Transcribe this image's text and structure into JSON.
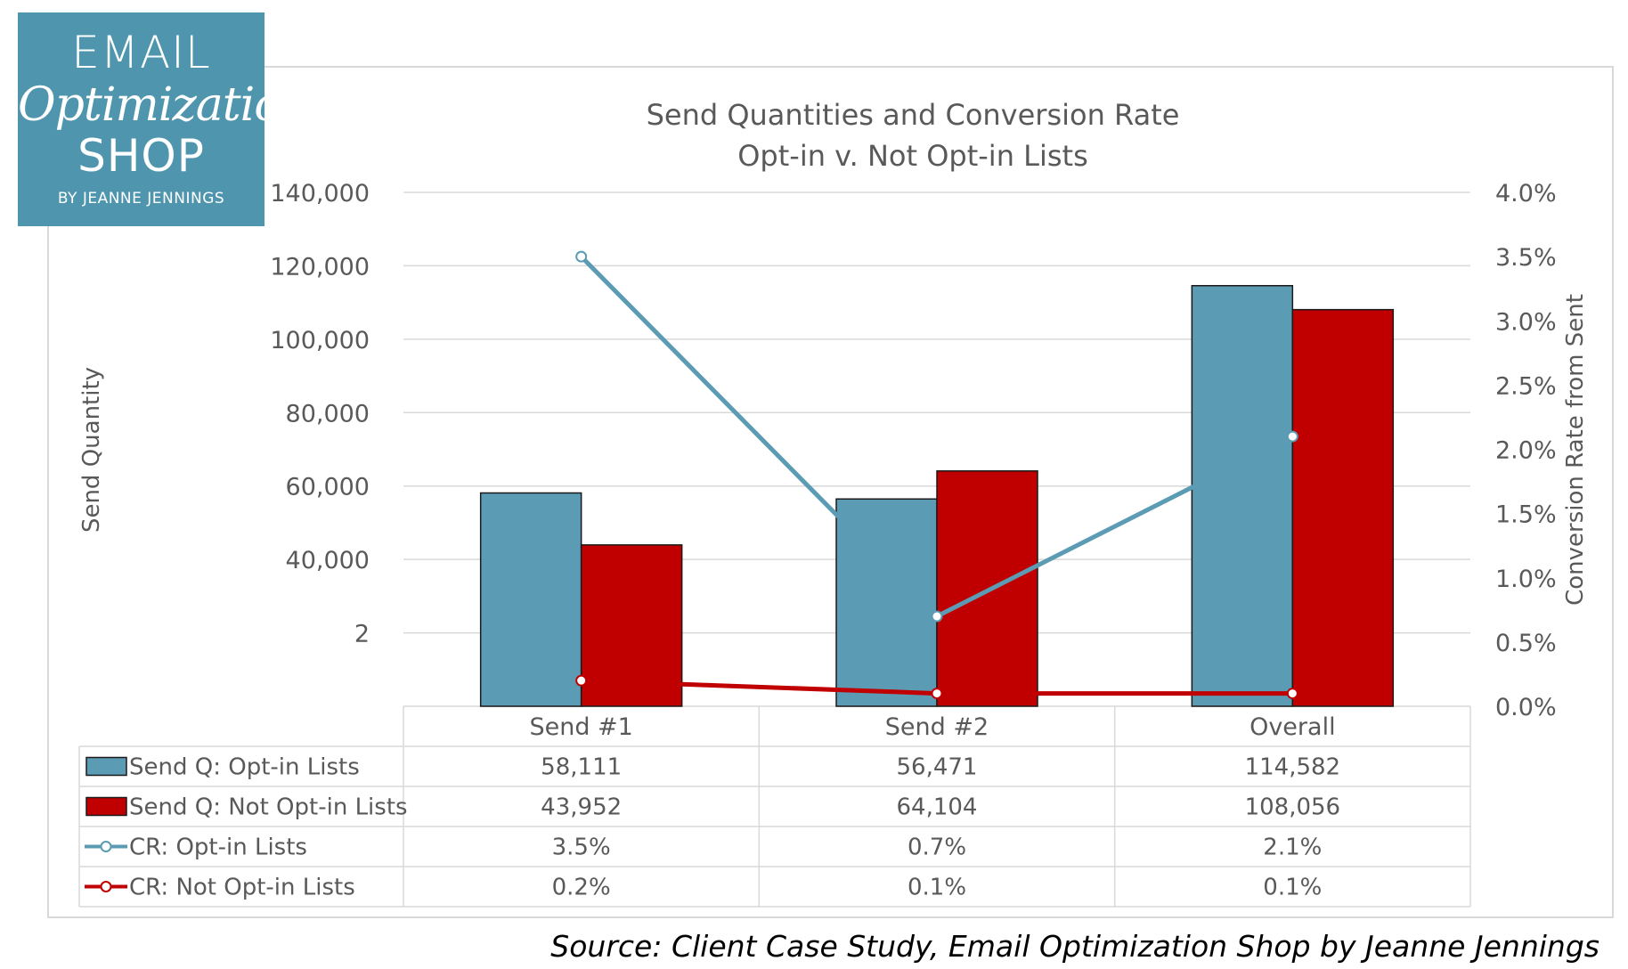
{
  "logo": {
    "line1": "EMAIL",
    "script": "Optimization",
    "line3": "SHOP",
    "byline": "BY JEANNE JENNINGS"
  },
  "source_note": "Source: Client Case Study, Email Optimization Shop by Jeanne Jennings",
  "colors": {
    "optin": "#5b9bb3",
    "not_optin": "#c00000",
    "grid": "#d9d9d9",
    "text": "#595959"
  },
  "chart_data": {
    "type": "bar",
    "title": "Send Quantities and Conversion Rate",
    "subtitle": "Opt-in v. Not Opt-in Lists",
    "categories": [
      "Send #1",
      "Send #2",
      "Overall"
    ],
    "ylabel": "Send Quantity",
    "y2label": "Conversion Rate from Sent",
    "ylim": [
      0,
      140000
    ],
    "y_ticks": [
      "140,000",
      "120,000",
      "100,000",
      "80,000",
      "60,000",
      "40,000",
      "2"
    ],
    "y2lim": [
      0,
      4.0
    ],
    "y2_ticks": [
      "4.0%",
      "3.5%",
      "3.0%",
      "2.5%",
      "2.0%",
      "1.5%",
      "1.0%",
      "0.5%",
      "0.0%"
    ],
    "grid": true,
    "series": [
      {
        "name": "Send Q: Opt-in Lists",
        "type": "bar",
        "axis": "left",
        "values": [
          58111,
          56471,
          114582
        ],
        "labels": [
          "58,111",
          "56,471",
          "114,582"
        ]
      },
      {
        "name": "Send Q: Not Opt-in Lists",
        "type": "bar",
        "axis": "left",
        "values": [
          43952,
          64104,
          108056
        ],
        "labels": [
          "43,952",
          "64,104",
          "108,056"
        ]
      },
      {
        "name": "CR: Opt-in Lists",
        "type": "line",
        "axis": "right",
        "values": [
          3.5,
          0.7,
          2.1
        ],
        "labels": [
          "3.5%",
          "0.7%",
          "2.1%"
        ]
      },
      {
        "name": "CR: Not Opt-in Lists",
        "type": "line",
        "axis": "right",
        "values": [
          0.2,
          0.1,
          0.1
        ],
        "labels": [
          "0.2%",
          "0.1%",
          "0.1%"
        ]
      }
    ]
  }
}
